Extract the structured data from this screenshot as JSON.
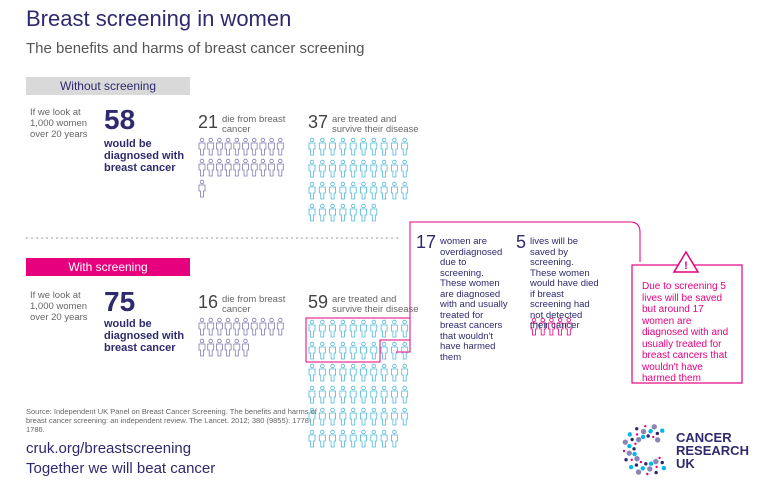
{
  "header": {
    "title": "Breast screening in women",
    "subtitle": "The benefits and harms of breast cancer screening"
  },
  "without": {
    "label": "Without screening",
    "intro": "If we look at 1,000 women over 20 years",
    "diagnosed": {
      "value": 58,
      "text": "would be diagnosed with breast cancer"
    },
    "die": {
      "value": 21,
      "text": "die from breast cancer"
    },
    "survive": {
      "value": 37,
      "text": "are treated and survive their disease"
    }
  },
  "with": {
    "label": "With screening",
    "intro": "If we look at 1,000 women over 20 years",
    "diagnosed": {
      "value": 75,
      "text": "would be diagnosed with breast cancer"
    },
    "die": {
      "value": 16,
      "text": "die from breast cancer"
    },
    "survive": {
      "value": 59,
      "text": "are treated and survive their disease"
    }
  },
  "overdiagnosed": {
    "value": 17,
    "text": "women are overdiagnosed due to screening. These women are diagnosed with and usually treated for breast cancers that wouldn't have harmed them"
  },
  "saved": {
    "value": 5,
    "text": "lives will be saved by screening. These women would have died if breast screening had not detected their cancer"
  },
  "warning": "Due to screening 5 lives will be saved but around 17 women are diagnosed with and usually treated for breast cancers that wouldn't have harmed them",
  "source": "Source: Independent UK Panel on Breast Cancer Screening. The benefits and harms of breast cancer screening: an independent review. The Lancet. 2012; 380 (9855): 1778-1786.",
  "footer": {
    "url": "cruk.org/breastscreening",
    "tagline": "Together we will beat cancer"
  },
  "logo": [
    "CANCER",
    "RESEARCH",
    "UK"
  ]
}
